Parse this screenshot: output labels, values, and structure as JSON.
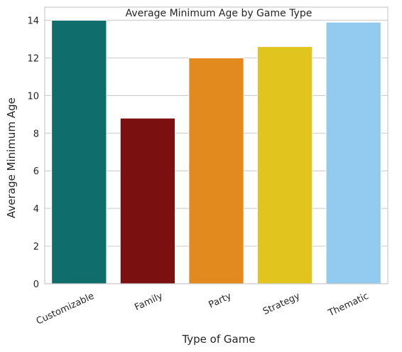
{
  "chart_data": {
    "type": "bar",
    "title": "Average Minimum Age by Game Type",
    "xlabel": "Type of Game",
    "ylabel": "Average Minimum Age",
    "categories": [
      "Customizable",
      "Family",
      "Party",
      "Strategy",
      "Thematic"
    ],
    "values": [
      14.0,
      8.8,
      12.0,
      12.6,
      13.9
    ],
    "colors": [
      "#0f6e6b",
      "#7a1010",
      "#e38a1e",
      "#e2c41e",
      "#93caef"
    ],
    "ylim": [
      0,
      14.7
    ],
    "yticks": [
      0,
      2,
      4,
      6,
      8,
      10,
      12,
      14
    ],
    "ytick_labels": [
      "0",
      "2",
      "4",
      "6",
      "8",
      "10",
      "12",
      "14"
    ],
    "grid": "horizontal",
    "xtick_rotation_deg": 25
  }
}
